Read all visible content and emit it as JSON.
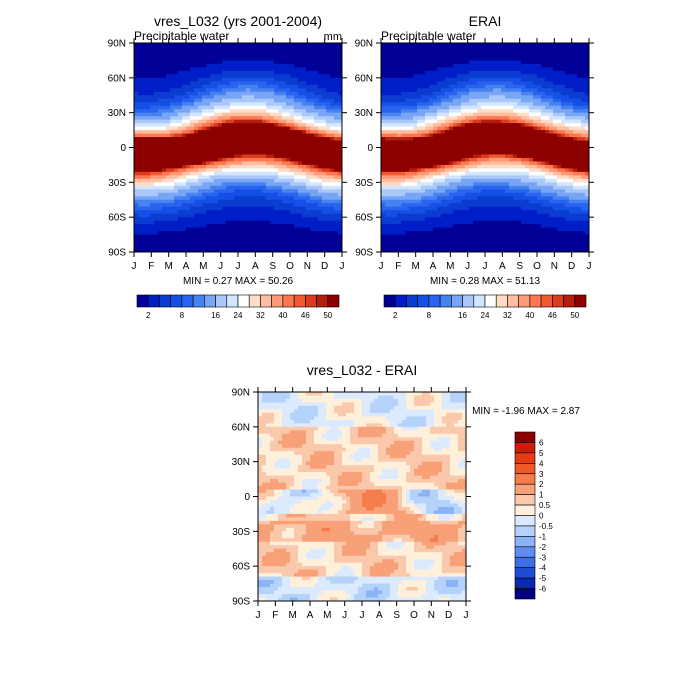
{
  "chart_data": [
    {
      "type": "heatmap",
      "id": "model",
      "title": "vres_L032 (yrs 2001-2004)",
      "subtitle_left": "Precipitable water",
      "subtitle_right": "mm",
      "x_ticks": [
        "J",
        "F",
        "M",
        "A",
        "M",
        "J",
        "J",
        "A",
        "S",
        "O",
        "N",
        "D",
        "J"
      ],
      "y_ticks": [
        "90N",
        "60N",
        "30N",
        "0",
        "30S",
        "60S",
        "90S"
      ],
      "stats": "MIN =   0.27 MAX =  50.26",
      "min": 0.27,
      "max": 50.26,
      "legend_levels": [
        2,
        4,
        6,
        8,
        10,
        12,
        16,
        20,
        24,
        28,
        32,
        36,
        40,
        44,
        46,
        48,
        50
      ],
      "legend_labels": [
        "2",
        "8",
        "16",
        "24",
        "32",
        "40",
        "46",
        "50"
      ],
      "legend_colors": [
        "#000096",
        "#001ec8",
        "#0a3cd2",
        "#1450e6",
        "#2864ee",
        "#4682f0",
        "#78a5f5",
        "#aac8fa",
        "#d2e6ff",
        "#ffffff",
        "#ffdcc8",
        "#ffbea0",
        "#ff9b78",
        "#ff7850",
        "#f05a32",
        "#dc3c1e",
        "#b41e0f",
        "#8c0000"
      ]
    },
    {
      "type": "heatmap",
      "id": "obs",
      "title": "ERAI",
      "subtitle_left": "Precipitable water",
      "x_ticks": [
        "J",
        "F",
        "M",
        "A",
        "M",
        "J",
        "J",
        "A",
        "S",
        "O",
        "N",
        "D",
        "J"
      ],
      "y_ticks": [
        "90N",
        "60N",
        "30N",
        "0",
        "30S",
        "60S",
        "90S"
      ],
      "stats": "MIN =   0.28 MAX =  51.13",
      "min": 0.28,
      "max": 51.13,
      "legend_levels": [
        2,
        4,
        6,
        8,
        10,
        12,
        16,
        20,
        24,
        28,
        32,
        36,
        40,
        44,
        46,
        48,
        50
      ],
      "legend_labels": [
        "2",
        "8",
        "16",
        "24",
        "32",
        "40",
        "46",
        "50"
      ],
      "legend_colors": [
        "#000096",
        "#001ec8",
        "#0a3cd2",
        "#1450e6",
        "#2864ee",
        "#4682f0",
        "#78a5f5",
        "#aac8fa",
        "#d2e6ff",
        "#ffffff",
        "#ffdcc8",
        "#ffbea0",
        "#ff9b78",
        "#ff7850",
        "#f05a32",
        "#dc3c1e",
        "#b41e0f",
        "#8c0000"
      ]
    },
    {
      "type": "heatmap",
      "id": "diff",
      "title": "vres_L032 - ERAI",
      "x_ticks": [
        "J",
        "F",
        "M",
        "A",
        "M",
        "J",
        "J",
        "A",
        "S",
        "O",
        "N",
        "D",
        "J"
      ],
      "y_ticks": [
        "90N",
        "60N",
        "30N",
        "0",
        "30S",
        "60S",
        "90S"
      ],
      "stats": "MIN =  -1.96 MAX =   2.87",
      "min": -1.96,
      "max": 2.87,
      "legend_levels": [
        6,
        5,
        4,
        3,
        2,
        1,
        0.5,
        0,
        -0.5,
        -1,
        -2,
        -3,
        -4,
        -5,
        -6
      ],
      "legend_labels": [
        "6",
        "5",
        "4",
        "3",
        "2",
        "1",
        "0.5",
        "0",
        "-0.5",
        "-1",
        "-2",
        "-3",
        "-4",
        "-5",
        "-6"
      ],
      "legend_colors": [
        "#8c0000",
        "#c81e0a",
        "#e63c14",
        "#f05a28",
        "#f57d4b",
        "#f8a078",
        "#fac8aa",
        "#fff0dc",
        "#dceaff",
        "#b4d2fa",
        "#8cb4f5",
        "#5f8cf0",
        "#3c6ee6",
        "#1e4bd2",
        "#0a28b4",
        "#000082"
      ]
    }
  ]
}
